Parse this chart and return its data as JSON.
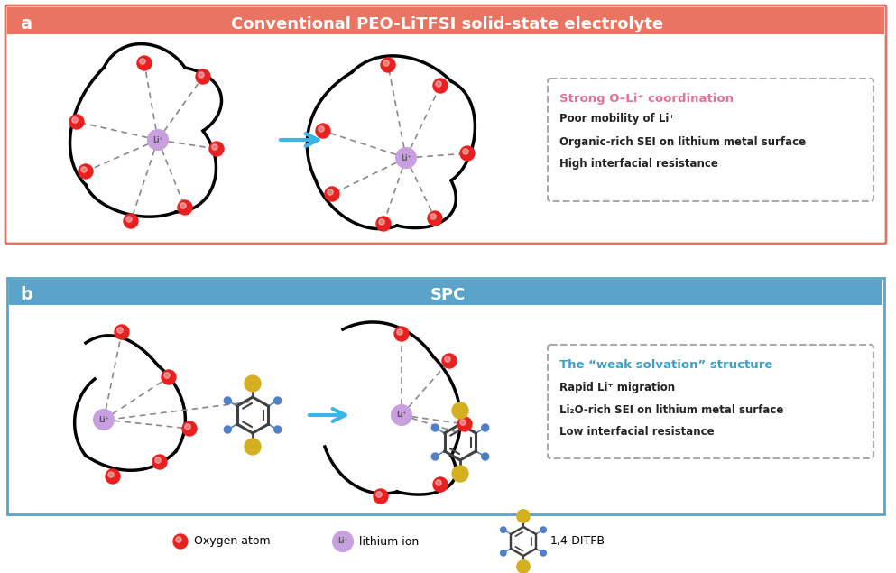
{
  "panel_a_title": "Conventional PEO-LiTFSI solid-state electrolyte",
  "panel_b_title": "SPC",
  "panel_a_color": "#E87461",
  "panel_b_color": "#5BA3C9",
  "panel_a_bg": "#FDECEA",
  "panel_b_bg": "#EAF4FB",
  "label_a": "a",
  "label_b": "b",
  "box_a_title": "Strong O–Li⁺ coordination",
  "box_a_title_color": "#E87090",
  "box_a_lines": [
    "Poor mobility of Li⁺",
    "Organic-rich SEI on lithium metal surface",
    "High interfacial resistance"
  ],
  "box_b_title": "The “weak solvation” structure",
  "box_b_title_color": "#3BA0C8",
  "box_b_lines": [
    "Rapid Li⁺ migration",
    "Li₂O-rich SEI on lithium metal surface",
    "Low interfacial resistance"
  ],
  "arrow_color": "#3BB5E8",
  "dashed_color": "#888888",
  "oxygen_color": "#E82020",
  "li_color": "#C8A0E0",
  "li_border": "#9060B0",
  "ditfb_ring_color": "#404040",
  "ditfb_f_color": "#5080C8",
  "ditfb_br_color": "#D4B020",
  "legend_oxygen": "Oxygen atom",
  "legend_li": "lithium ion",
  "legend_ditfb": "1,4-DITFB",
  "bg_white": "#FFFFFF"
}
